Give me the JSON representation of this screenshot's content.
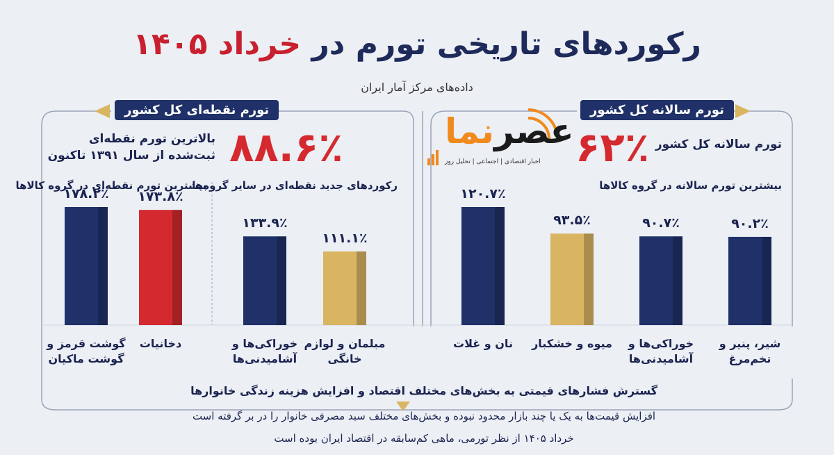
{
  "header": {
    "title": "رکوردهای تاریخی تورم در",
    "title_highlight": "خرداد ۱۴۰۵",
    "subtitle": "داده‌های مرکز آمار ایران"
  },
  "logo": {
    "name_part1": "عصر",
    "name_part2": "نما",
    "tagline": "اخبار اقتصادی | اجتماعی | تحلیل روز"
  },
  "left_panel": {
    "label": "تورم نقطه‌ای کل کشور",
    "headline": "۸۸.۶٪",
    "description": [
      "بالاترین تورم نقطه‌ای",
      "ثبت‌شده از سال ۱۳۹۱ تاکنون"
    ],
    "subheading_1": "بیشترین تورم نقطه‌ای در گروه کالاها",
    "subheading_2": "رکوردهای جدید نقطه‌ای در سایر گروه‌ها"
  },
  "right_panel": {
    "label": "تورم سالانه کل کشور",
    "headline": "۶۲٪",
    "description": "تورم سالانه کل کشور",
    "subheading": "بیشترین تورم سالانه در گروه کالاها"
  },
  "chart_data": [
    {
      "type": "bar",
      "categories": [
        "گوشت قرمز و گوشت ماکیان",
        "دخانیات",
        "خوراکی‌ها و آشامیدنی‌ها",
        "مبلمان و لوازم خانگی"
      ],
      "values": [
        178.2,
        173.8,
        133.9,
        111.1
      ],
      "value_labels": [
        "۱۷۸.۲٪",
        "۱۷۳.۸٪",
        "۱۳۳.۹٪",
        "۱۱۱.۱٪"
      ],
      "colors": [
        "#1f3168",
        "#d42a2f",
        "#1f3168",
        "#d9b562"
      ]
    },
    {
      "type": "bar",
      "categories": [
        "نان و غلات",
        "میوه و خشکبار",
        "خوراکی‌ها و آشامیدنی‌ها",
        "شیر، پنیر و تخم‌مرغ"
      ],
      "values": [
        120.7,
        93.5,
        90.7,
        90.2
      ],
      "value_labels": [
        "۱۲۰.۷٪",
        "۹۳.۵٪",
        "۹۰.۷٪",
        "۹۰.۲٪"
      ],
      "colors": [
        "#1f3168",
        "#d9b562",
        "#1f3168",
        "#1f3168"
      ]
    }
  ],
  "footer": [
    "گسترش فشارهای قیمتی به بخش‌های مختلف اقتصاد و افزایش هزینه زندگی خانوارها",
    "افزایش قیمت‌ها به یک یا چند بازار محدود نبوده و بخش‌های مختلف سبد مصرفی خانوار را در بر گرفته است",
    "خرداد ۱۴۰۵ از نظر تورمی، ماهی کم‌سابقه در اقتصاد ایران بوده است"
  ]
}
